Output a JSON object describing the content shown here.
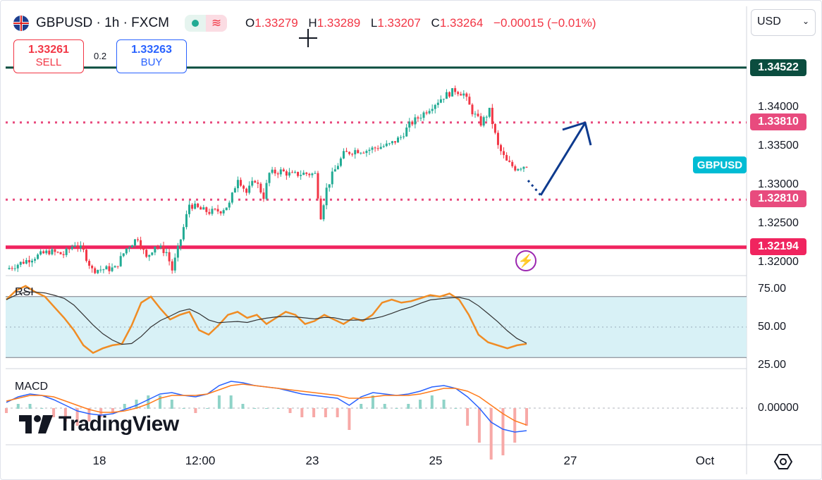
{
  "header": {
    "symbol": "GBPUSD",
    "separator1": "·",
    "interval": "1h",
    "separator2": "·",
    "source": "FXCM",
    "ohlc": {
      "o_label": "O",
      "o_value": "1.33279",
      "h_label": "H",
      "h_value": "1.33289",
      "l_label": "L",
      "l_value": "1.33207",
      "c_label": "C",
      "c_value": "1.33264",
      "change": "−0.00015 (−0.01%)"
    }
  },
  "trade": {
    "sell_price": "1.33261",
    "sell_label": "SELL",
    "spread": "0.2",
    "buy_price": "1.33263",
    "buy_label": "BUY"
  },
  "currency_select": {
    "value": "USD"
  },
  "price_tags": {
    "resistance_top": "1.34522",
    "level_upper": "1.33810",
    "level_lower": "1.32810",
    "support": "1.32194",
    "symbol_tag": "GBPUSD"
  },
  "price_axis": [
    "1.34000",
    "1.33500",
    "1.33000",
    "1.32500",
    "1.32000"
  ],
  "rsi": {
    "label": "RSI",
    "axis": [
      "75.00",
      "50.00",
      "25.00"
    ]
  },
  "macd": {
    "label": "MACD",
    "axis": [
      "0.00000"
    ]
  },
  "x_axis": [
    "18",
    "12:00",
    "23",
    "25",
    "27",
    "Oct"
  ],
  "branding": {
    "name": "TradingView"
  },
  "colors": {
    "up": "#22ab94",
    "down": "#f23645",
    "resistance": "#0b4d3f",
    "support": "#f0245f",
    "dotted": "#e84b7e",
    "arrow": "#0d3a8e",
    "rsi": "#f08c24",
    "rsi_ma": "#333333",
    "rsi_band": "#d8f1f6",
    "macd": "#2962ff",
    "signal": "#ff7a1a",
    "accent": "#00bcd4"
  },
  "icons": {
    "flag": "uk-flag-icon",
    "live": "live-dot-icon",
    "wave": "wave-icon",
    "bolt": "lightning-icon",
    "settings": "settings-icon",
    "crosshair": "crosshair-icon"
  },
  "chart_data": [
    {
      "type": "candlestick",
      "title": "GBPUSD · 1h · FXCM",
      "ylim": [
        1.3185,
        1.3475
      ],
      "x_ticks": [
        "18",
        "12:00",
        "23",
        "25",
        "27",
        "Oct"
      ],
      "horizontal_levels": [
        1.34522,
        1.3381,
        1.3281,
        1.32194
      ],
      "close_path": [
        [
          0,
          1.3191
        ],
        [
          5,
          1.3199
        ],
        [
          10,
          1.3207
        ],
        [
          15,
          1.3214
        ],
        [
          20,
          1.321
        ],
        [
          24,
          1.3224
        ],
        [
          27,
          1.3214
        ],
        [
          30,
          1.319
        ],
        [
          38,
          1.3192
        ],
        [
          42,
          1.3218
        ],
        [
          46,
          1.3232
        ],
        [
          49,
          1.3205
        ],
        [
          52,
          1.3222
        ],
        [
          56,
          1.3213
        ],
        [
          58,
          1.319
        ],
        [
          61,
          1.323
        ],
        [
          64,
          1.3275
        ],
        [
          68,
          1.3268
        ],
        [
          71,
          1.3265
        ],
        [
          75,
          1.3267
        ],
        [
          78,
          1.3275
        ],
        [
          81,
          1.331
        ],
        [
          84,
          1.329
        ],
        [
          87,
          1.3307
        ],
        [
          90,
          1.3285
        ],
        [
          92,
          1.3315
        ],
        [
          96,
          1.3318
        ],
        [
          100,
          1.3313
        ],
        [
          104,
          1.3315
        ],
        [
          108,
          1.3314
        ],
        [
          110,
          1.326
        ],
        [
          112,
          1.3295
        ],
        [
          114,
          1.3313
        ],
        [
          118,
          1.334
        ],
        [
          122,
          1.3345
        ],
        [
          126,
          1.3345
        ],
        [
          130,
          1.3349
        ],
        [
          134,
          1.3352
        ],
        [
          138,
          1.3362
        ],
        [
          141,
          1.3378
        ],
        [
          145,
          1.339
        ],
        [
          149,
          1.3403
        ],
        [
          153,
          1.3415
        ],
        [
          157,
          1.3423
        ],
        [
          160,
          1.3418
        ],
        [
          163,
          1.3395
        ],
        [
          166,
          1.338
        ],
        [
          169,
          1.3396
        ],
        [
          172,
          1.335
        ],
        [
          175,
          1.333
        ],
        [
          178,
          1.3322
        ],
        [
          182,
          1.3326
        ]
      ]
    },
    {
      "type": "line",
      "title": "RSI",
      "ylim": [
        25,
        75
      ],
      "band": [
        30,
        70
      ],
      "series": [
        {
          "values": [
            68,
            74,
            77,
            73,
            70,
            63,
            56,
            48,
            38,
            33,
            36,
            38,
            39,
            51,
            66,
            70,
            62,
            55,
            58,
            60,
            48,
            45,
            51,
            58,
            60,
            56,
            58,
            52,
            56,
            60,
            58,
            52,
            54,
            58,
            55,
            52,
            56,
            54,
            58,
            66,
            68,
            66,
            67,
            69,
            71,
            70,
            72,
            68,
            58,
            45,
            40,
            38,
            36,
            38,
            39
          ]
        }
      ]
    },
    {
      "type": "line",
      "title": "MACD",
      "series": [
        {
          "values": [
            0.0004,
            0.0008,
            0.001,
            0.0009,
            0.0006,
            0.0002,
            -0.0002,
            -0.0004,
            -0.0005,
            -0.0004,
            -0.0001,
            0.0002,
            0.0006,
            0.001,
            0.0011,
            0.0009,
            0.0008,
            0.001,
            0.0016,
            0.0019,
            0.0018,
            0.0016,
            0.0015,
            0.0014,
            0.0012,
            0.001,
            0.0009,
            0.0008,
            0.0007,
            0.0002,
            0.0008,
            0.0011,
            0.001,
            0.0009,
            0.001,
            0.0012,
            0.0015,
            0.0016,
            0.0014,
            0.0008,
            0.0,
            -0.001,
            -0.0015,
            -0.0017,
            -0.0016
          ]
        },
        {
          "values": [
            0.0005,
            0.0007,
            0.0009,
            0.0009,
            0.0008,
            0.0005,
            0.0002,
            -0.0001,
            -0.0003,
            -0.0003,
            -0.0002,
            0.0,
            0.0003,
            0.0007,
            0.0009,
            0.0009,
            0.0009,
            0.001,
            0.0013,
            0.0016,
            0.0017,
            0.0016,
            0.0015,
            0.0014,
            0.0013,
            0.0012,
            0.0011,
            0.001,
            0.0009,
            0.0007,
            0.0007,
            0.0008,
            0.0009,
            0.0009,
            0.0009,
            0.001,
            0.0012,
            0.0014,
            0.0014,
            0.0012,
            0.0008,
            0.0002,
            -0.0004,
            -0.0009,
            -0.0012
          ]
        }
      ]
    }
  ]
}
